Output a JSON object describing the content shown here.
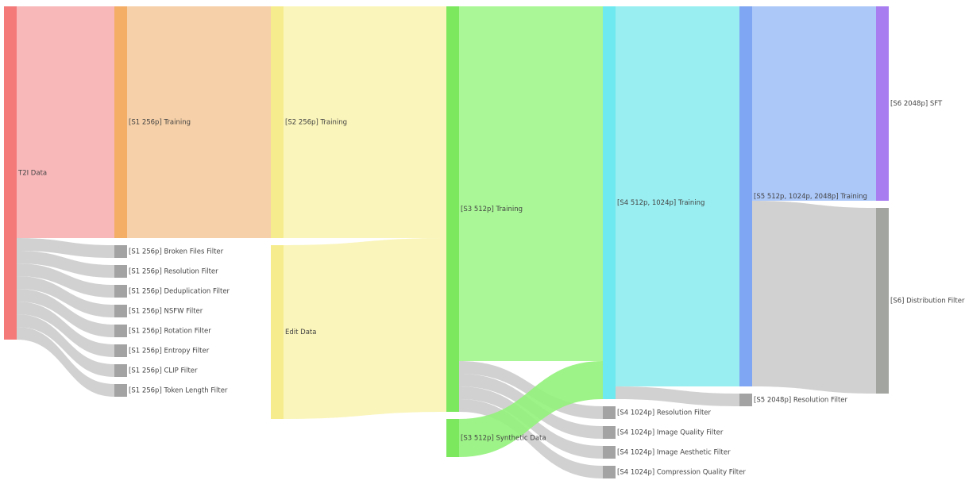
{
  "chart_data": {
    "type": "sankey",
    "nodes": [
      {
        "name": "T2I Data",
        "color": "#f47a7a"
      },
      {
        "name": "[S1 256p] Training",
        "color": "#f5ae66"
      },
      {
        "name": "[S1 256p] Broken Files Filter",
        "color": "#a3a3a3"
      },
      {
        "name": "[S1 256p] Resolution Filter",
        "color": "#a3a3a3"
      },
      {
        "name": "[S1 256p] Deduplication Filter",
        "color": "#a3a3a3"
      },
      {
        "name": "[S1 256p] NSFW Filter",
        "color": "#a3a3a3"
      },
      {
        "name": "[S1 256p] Rotation Filter",
        "color": "#a3a3a3"
      },
      {
        "name": "[S1 256p] Entropy Filter",
        "color": "#a3a3a3"
      },
      {
        "name": "[S1 256p] CLIP Filter",
        "color": "#a3a3a3"
      },
      {
        "name": "[S1 256p] Token Length Filter",
        "color": "#a3a3a3"
      },
      {
        "name": "[S2 256p] Training",
        "color": "#f6ec8e"
      },
      {
        "name": "Edit Data",
        "color": "#f6ec8e"
      },
      {
        "name": "[S3 512p] Training",
        "color": "#7ce85e"
      },
      {
        "name": "[S3 512p] Synthetic Data",
        "color": "#7ce85e"
      },
      {
        "name": "[S4 512p, 1024p] Training",
        "color": "#6ee9f0"
      },
      {
        "name": "[S4 1024p] Resolution Filter",
        "color": "#a3a3a3"
      },
      {
        "name": "[S4 1024p] Image Quality Filter",
        "color": "#a3a3a3"
      },
      {
        "name": "[S4 1024p] Image Aesthetic Filter",
        "color": "#a3a3a3"
      },
      {
        "name": "[S4 1024p] Compression Quality Filter",
        "color": "#a3a3a3"
      },
      {
        "name": "[S5 512p, 1024p, 2048p] Training",
        "color": "#7ea6f2"
      },
      {
        "name": "[S5 2048p] Resolution Filter",
        "color": "#a3a3a3"
      },
      {
        "name": "[S6 2048p] SFT",
        "color": "#a77df0"
      },
      {
        "name": "[S6] Distribution Filter",
        "color": "#a3a6a0"
      }
    ],
    "links": [
      {
        "source": 0,
        "target": 1,
        "value": 292,
        "color": "#f7b0b3"
      },
      {
        "source": 0,
        "target": 2,
        "value": 16,
        "color": "#cccccc"
      },
      {
        "source": 0,
        "target": 3,
        "value": 16,
        "color": "#cccccc"
      },
      {
        "source": 0,
        "target": 4,
        "value": 16,
        "color": "#cccccc"
      },
      {
        "source": 0,
        "target": 5,
        "value": 16,
        "color": "#cccccc"
      },
      {
        "source": 0,
        "target": 6,
        "value": 16,
        "color": "#cccccc"
      },
      {
        "source": 0,
        "target": 7,
        "value": 16,
        "color": "#cccccc"
      },
      {
        "source": 0,
        "target": 8,
        "value": 16,
        "color": "#cccccc"
      },
      {
        "source": 0,
        "target": 9,
        "value": 16,
        "color": "#cccccc"
      },
      {
        "source": 1,
        "target": 10,
        "value": 292,
        "color": "#f5cb9e"
      },
      {
        "source": 10,
        "target": 12,
        "value": 292,
        "color": "#faf4b3"
      },
      {
        "source": 11,
        "target": 12,
        "value": 219,
        "color": "#faf4b3"
      },
      {
        "source": 12,
        "target": 14,
        "value": 447,
        "color": "#a0f68b"
      },
      {
        "source": 12,
        "target": 15,
        "value": 16,
        "color": "#cccccc"
      },
      {
        "source": 12,
        "target": 16,
        "value": 16,
        "color": "#cccccc"
      },
      {
        "source": 12,
        "target": 17,
        "value": 16,
        "color": "#cccccc"
      },
      {
        "source": 12,
        "target": 18,
        "value": 16,
        "color": "#cccccc"
      },
      {
        "source": 13,
        "target": 14,
        "value": 48,
        "color": "#92f27a"
      },
      {
        "source": 14,
        "target": 19,
        "value": 479,
        "color": "#8eecf0"
      },
      {
        "source": 14,
        "target": 20,
        "value": 16,
        "color": "#cccccc"
      },
      {
        "source": 19,
        "target": 21,
        "value": 245,
        "color": "#a3c2f8"
      },
      {
        "source": 19,
        "target": 22,
        "value": 234,
        "color": "#cccccc"
      }
    ]
  }
}
